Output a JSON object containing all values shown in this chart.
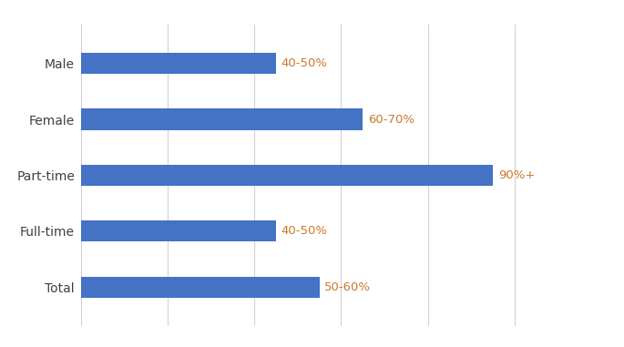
{
  "categories": [
    "Total",
    "Full-time",
    "Part-time",
    "Female",
    "Male"
  ],
  "values": [
    55,
    45,
    95,
    65,
    45
  ],
  "labels": [
    "50-60%",
    "40-50%",
    "90%+",
    "60-70%",
    "40-50%"
  ],
  "bar_color": "#4472C4",
  "label_color": "#C97A2A",
  "background_color": "#FFFFFF",
  "grid_color": "#D0D0D8",
  "tick_label_color": "#404040",
  "bar_height": 0.38,
  "xlim": [
    0,
    108
  ],
  "label_fontsize": 9.5,
  "tick_fontsize": 10,
  "grid_xticks": [
    0,
    20,
    40,
    60,
    80,
    100
  ]
}
